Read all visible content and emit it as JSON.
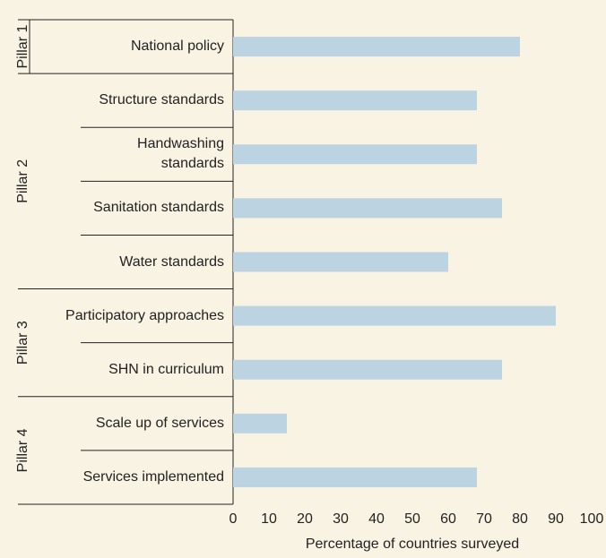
{
  "chart_data": {
    "type": "bar",
    "orientation": "horizontal",
    "x_label": "Percentage of countries surveyed",
    "color": "#bcd3e2",
    "groups": [
      {
        "name": "Pillar 1",
        "categories": [
          "National policy"
        ],
        "values": [
          80
        ]
      },
      {
        "name": "Pillar 2",
        "categories": [
          "Structure standards",
          "Handwashing\nstandards",
          "Sanitation standards",
          "Water standards"
        ],
        "values": [
          68,
          68,
          75,
          60
        ]
      },
      {
        "name": "Pillar 3",
        "categories": [
          "Participatory approaches",
          "SHN in curriculum"
        ],
        "values": [
          90,
          75
        ]
      },
      {
        "name": "Pillar 4",
        "categories": [
          "Scale up of services",
          "Services implemented"
        ],
        "values": [
          15,
          68
        ]
      }
    ],
    "xlim": [
      0,
      100
    ],
    "xticks": [
      0,
      10,
      20,
      30,
      40,
      50,
      60,
      70,
      80,
      90,
      100
    ],
    "grid": false
  }
}
